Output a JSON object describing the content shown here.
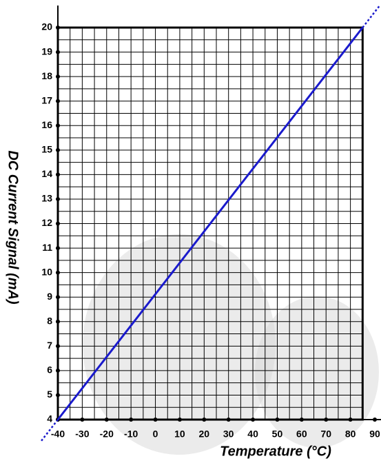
{
  "chart_data": {
    "type": "line",
    "x_label": "Temperature (°C)",
    "y_label": "DC Current Signal (mA)",
    "x": [
      -40,
      85
    ],
    "series": [
      {
        "color": "#1a1acc",
        "values": [
          4,
          20
        ]
      }
    ],
    "xlim": [
      -40,
      90
    ],
    "ylim": [
      4,
      20
    ],
    "xticks": [
      -40,
      -30,
      -20,
      -10,
      0,
      10,
      20,
      30,
      40,
      50,
      60,
      70,
      80,
      90
    ],
    "yticks": [
      4,
      5,
      6,
      7,
      8,
      9,
      10,
      11,
      12,
      13,
      14,
      15,
      16,
      17,
      18,
      19,
      20
    ],
    "xgrid": [
      -40,
      -35,
      -30,
      -25,
      -20,
      -15,
      -10,
      -5,
      0,
      5,
      10,
      15,
      20,
      25,
      30,
      35,
      40,
      45,
      50,
      55,
      60,
      65,
      70,
      75,
      80,
      85
    ],
    "ygrid": [
      4,
      4.5,
      5,
      5.5,
      6,
      6.5,
      7,
      7.5,
      8,
      8.5,
      9,
      9.5,
      10,
      10.5,
      11,
      11.5,
      12,
      12.5,
      13,
      13.5,
      14,
      14.5,
      15,
      15.5,
      16,
      16.5,
      17,
      17.5,
      18,
      18.5,
      19,
      19.5,
      20
    ],
    "grid": true
  }
}
